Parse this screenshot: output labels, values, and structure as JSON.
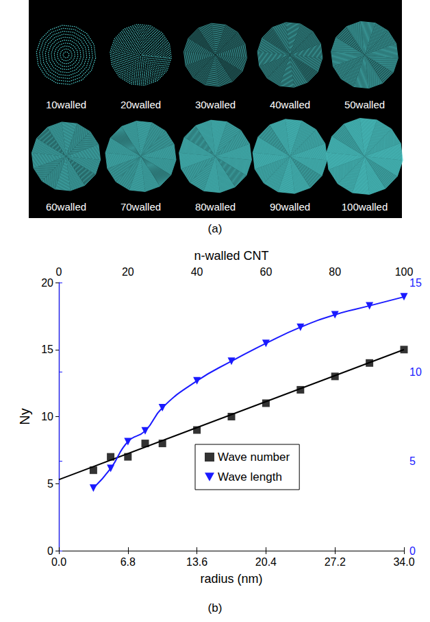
{
  "panel_a": {
    "caption": "(a)",
    "labels": [
      "10walled",
      "20walled",
      "30walled",
      "40walled",
      "50walled",
      "60walled",
      "70walled",
      "80walled",
      "90walled",
      "100walled"
    ]
  },
  "chart_data": {
    "type": "line",
    "caption": "(b)",
    "x_label": "radius (nm)",
    "y_label": "Ny",
    "x2_label": "n-walled CNT",
    "xlim": [
      0,
      34
    ],
    "xticks": [
      {
        "value": 0,
        "label": "0.0"
      },
      6.8,
      13.6,
      20.4,
      27.2,
      {
        "value": 34,
        "label": "34.0"
      }
    ],
    "x2lim": [
      0,
      100
    ],
    "x2ticks": [
      0,
      20,
      40,
      60,
      80,
      100
    ],
    "ylim": [
      0,
      20
    ],
    "yticks": [
      0,
      5,
      10,
      15,
      20
    ],
    "y2lim": [
      0,
      15
    ],
    "y2ticks": [
      0,
      5,
      10,
      15
    ],
    "x": [
      3.4,
      5.1,
      6.8,
      8.5,
      10.2,
      13.6,
      17.0,
      20.4,
      23.8,
      27.2,
      30.6,
      34.0
    ],
    "series": [
      {
        "name": "Wave number",
        "type": "scatter",
        "color": "#000000",
        "marker": "square",
        "values": [
          6,
          7,
          7,
          8,
          8,
          9,
          10,
          11,
          12,
          13,
          14,
          15
        ],
        "fit": {
          "x": [
            0,
            34
          ],
          "values": [
            5.3,
            15
          ]
        }
      },
      {
        "name": "Wave length",
        "type": "line",
        "color": "#1a1aff",
        "marker": "triangle-down",
        "line_style": "solid",
        "axis": "y2",
        "values": [
          3.5,
          4.6,
          6.1,
          6.7,
          8.0,
          9.5,
          10.6,
          11.6,
          12.5,
          13.2,
          13.7,
          14.2
        ]
      }
    ],
    "legend": "lower right",
    "grid": false
  }
}
